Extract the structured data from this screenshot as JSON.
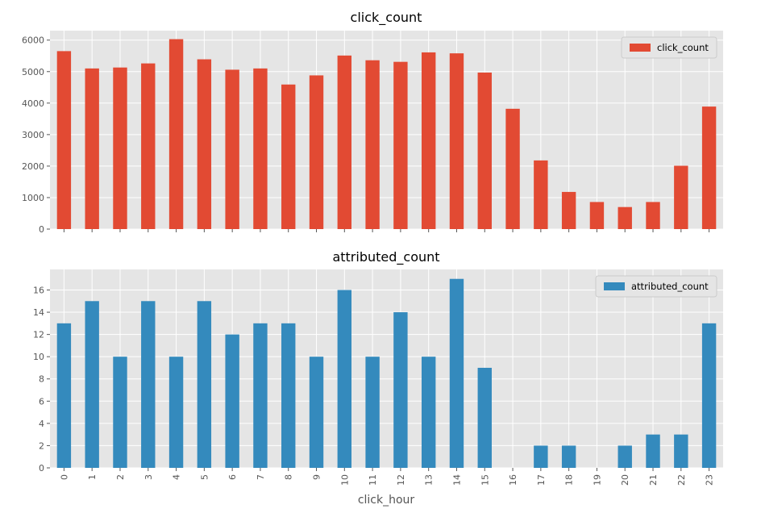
{
  "chart_data": [
    {
      "type": "bar",
      "title": "click_count",
      "xlabel": "",
      "ylabel": "",
      "categories": [
        "0",
        "1",
        "2",
        "3",
        "4",
        "5",
        "6",
        "7",
        "8",
        "9",
        "10",
        "11",
        "12",
        "13",
        "14",
        "15",
        "16",
        "17",
        "18",
        "19",
        "20",
        "21",
        "22",
        "23"
      ],
      "series": [
        {
          "name": "click_count",
          "color": "#E24A33",
          "values": [
            5650,
            5100,
            5130,
            5260,
            6030,
            5390,
            5060,
            5100,
            4590,
            4880,
            5510,
            5360,
            5310,
            5610,
            5580,
            4970,
            3820,
            2180,
            1180,
            860,
            700,
            860,
            2010,
            3890
          ]
        }
      ],
      "ylim": [
        0,
        6300
      ],
      "yticks": [
        0,
        1000,
        2000,
        3000,
        4000,
        5000,
        6000
      ],
      "legend": "top-right",
      "grid": true,
      "show_xtick_labels": false
    },
    {
      "type": "bar",
      "title": "attributed_count",
      "xlabel": "click_hour",
      "ylabel": "",
      "categories": [
        "0",
        "1",
        "2",
        "3",
        "4",
        "5",
        "6",
        "7",
        "8",
        "9",
        "10",
        "11",
        "12",
        "13",
        "14",
        "15",
        "16",
        "17",
        "18",
        "19",
        "20",
        "21",
        "22",
        "23"
      ],
      "series": [
        {
          "name": "attributed_count",
          "color": "#348ABD",
          "values": [
            13,
            15,
            10,
            15,
            10,
            15,
            12,
            13,
            13,
            10,
            16,
            10,
            14,
            10,
            17,
            9,
            0,
            2,
            2,
            0,
            2,
            3,
            3,
            13
          ]
        }
      ],
      "ylim": [
        0,
        17.85
      ],
      "yticks": [
        0,
        2,
        4,
        6,
        8,
        10,
        12,
        14,
        16
      ],
      "legend": "top-right",
      "grid": true,
      "show_xtick_labels": true
    }
  ],
  "style": {
    "panel_background": "#E5E5E5",
    "grid_color": "#FFFFFF",
    "tick_color": "#555555",
    "legend_background": "#E5E5E5"
  }
}
